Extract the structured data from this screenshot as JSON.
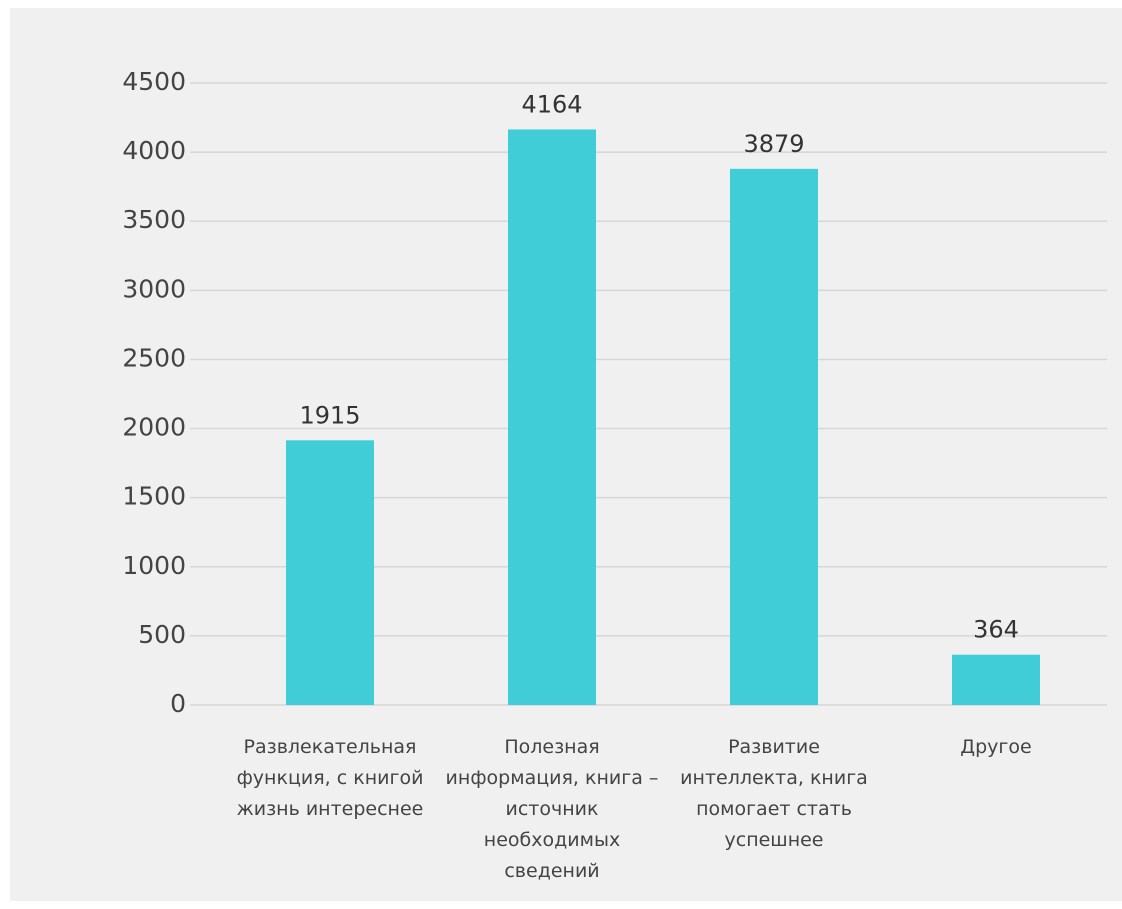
{
  "chart_data": {
    "type": "bar",
    "categories": [
      "Развлекательная функция, с книгой жизнь интереснее",
      "Полезная информация, книга – источник необходимых сведений",
      "Развитие интеллекта, книга помогает стать успешнее",
      "Другое"
    ],
    "values": [
      1915,
      4164,
      3879,
      364
    ],
    "color": "#41cdd8",
    "ylim": [
      0,
      4500
    ],
    "yticks": [
      0,
      500,
      1000,
      1500,
      2000,
      2500,
      3000,
      3500,
      4000,
      4500
    ],
    "grid": true
  }
}
